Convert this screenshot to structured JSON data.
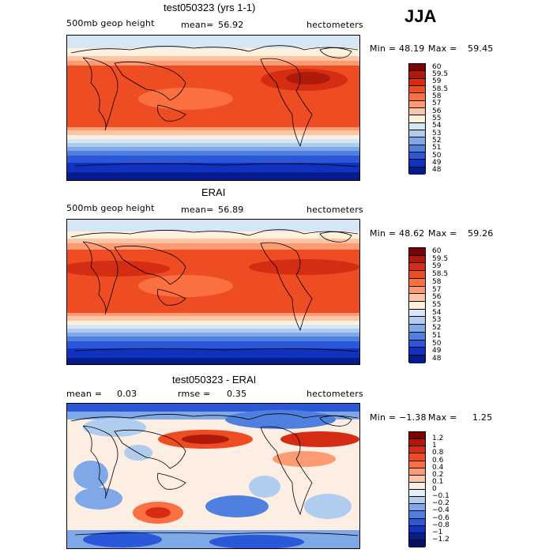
{
  "season": "JJA",
  "chart_data": [
    {
      "type": "heatmap",
      "title": "test050323 (yrs 1-1)",
      "left_label": "500mb geop height",
      "mean_label": "mean=",
      "mean_value": "56.92",
      "units": "hectometers",
      "min_label": "Min =",
      "min_value": "48.19",
      "max_label": "Max =",
      "max_value": "59.45",
      "levels": [
        "60",
        "59.5",
        "59",
        "58.5",
        "58",
        "57",
        "56",
        "55",
        "54",
        "53",
        "52",
        "51",
        "50",
        "49",
        "48"
      ],
      "colors": [
        "#7f0000",
        "#b01a0a",
        "#d52c14",
        "#ee4c22",
        "#fa7040",
        "#fc9a72",
        "#fdc4a6",
        "#fdf0dc",
        "#d6e6f7",
        "#b0ccef",
        "#7fa8e8",
        "#4f80e0",
        "#2a58d8",
        "#1132c0",
        "#061c8c"
      ]
    },
    {
      "type": "heatmap",
      "title": "ERAI",
      "left_label": "500mb geop height",
      "mean_label": "mean=",
      "mean_value": "56.89",
      "units": "hectometers",
      "min_label": "Min =",
      "min_value": "48.62",
      "max_label": "Max =",
      "max_value": "59.26",
      "levels": [
        "60",
        "59.5",
        "59",
        "58.5",
        "58",
        "57",
        "56",
        "55",
        "54",
        "53",
        "52",
        "51",
        "50",
        "49",
        "48"
      ],
      "colors": [
        "#7f0000",
        "#b01a0a",
        "#d52c14",
        "#ee4c22",
        "#fa7040",
        "#fc9a72",
        "#fdc4a6",
        "#fdf0dc",
        "#d6e6f7",
        "#b0ccef",
        "#7fa8e8",
        "#4f80e0",
        "#2a58d8",
        "#1132c0",
        "#061c8c"
      ]
    },
    {
      "type": "heatmap",
      "title": "test050323 - ERAI",
      "left_label": "mean =",
      "mean_label": "",
      "mean_value": "0.03",
      "rmse_label": "rmse =",
      "rmse_value": "0.35",
      "units": "hectometers",
      "min_label": "Min =",
      "min_value": "−1.38",
      "max_label": "Max =",
      "max_value": "1.25",
      "levels": [
        "1.2",
        "1",
        "0.8",
        "0.6",
        "0.4",
        "0.2",
        "0.1",
        "0",
        "−0.1",
        "−0.2",
        "−0.4",
        "−0.6",
        "−0.8",
        "−1",
        "−1.2"
      ],
      "colors": [
        "#7f0000",
        "#b01a0a",
        "#d52c14",
        "#ee4c22",
        "#fa7040",
        "#fc9a72",
        "#fdc4a6",
        "#fdeee4",
        "#e4eef9",
        "#b0ccef",
        "#7fa8e8",
        "#4f80e0",
        "#2a58d8",
        "#1132c0",
        "#061c8c",
        "#04125e"
      ]
    }
  ]
}
